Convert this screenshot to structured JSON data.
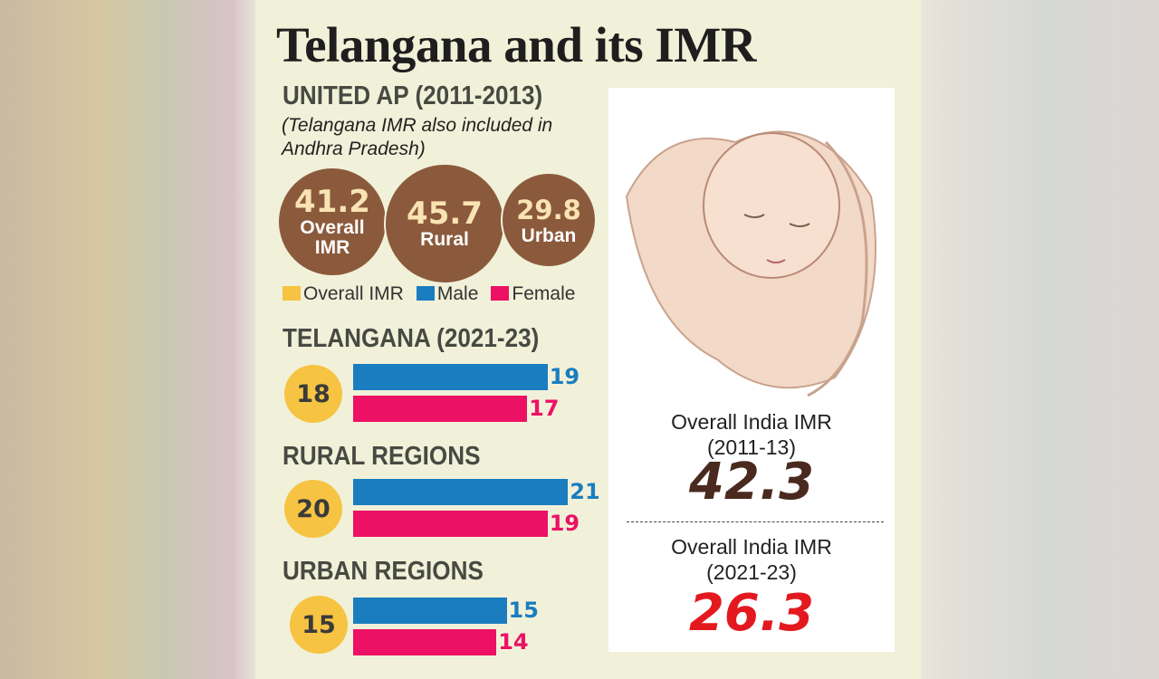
{
  "title": "Telangana and its IMR",
  "united_ap": {
    "heading": "UNITED AP (2011-2013)",
    "note": "(Telangana IMR also included in Andhra Pradesh)",
    "circles": [
      {
        "value": "41.2",
        "label1": "Overall",
        "label2": "IMR"
      },
      {
        "value": "45.7",
        "label1": "Rural",
        "label2": ""
      },
      {
        "value": "29.8",
        "label1": "Urban",
        "label2": ""
      }
    ]
  },
  "legend": [
    {
      "label": "Overall IMR",
      "color": "#f6c342"
    },
    {
      "label": "Male",
      "color": "#1a7dc0"
    },
    {
      "label": "Female",
      "color": "#ec1164"
    }
  ],
  "chart_data": {
    "type": "bar",
    "orientation": "horizontal",
    "categories": [
      "TELANGANA (2021-23)",
      "RURAL REGIONS",
      "URBAN REGIONS"
    ],
    "series": [
      {
        "name": "Overall IMR",
        "values": [
          18,
          20,
          15
        ],
        "color": "#f6c342"
      },
      {
        "name": "Male",
        "values": [
          19,
          21,
          15
        ],
        "color": "#1a7dc0"
      },
      {
        "name": "Female",
        "values": [
          17,
          19,
          14
        ],
        "color": "#ec1164"
      }
    ]
  },
  "india": [
    {
      "label1": "Overall India IMR",
      "label2": "(2011-13)",
      "value": "42.3",
      "color": "#4a2a1e"
    },
    {
      "label1": "Overall India IMR",
      "label2": "(2021-23)",
      "value": "26.3",
      "color": "#e3191f"
    }
  ],
  "image": {
    "subject": "newborn baby cradled in hands illustration"
  }
}
